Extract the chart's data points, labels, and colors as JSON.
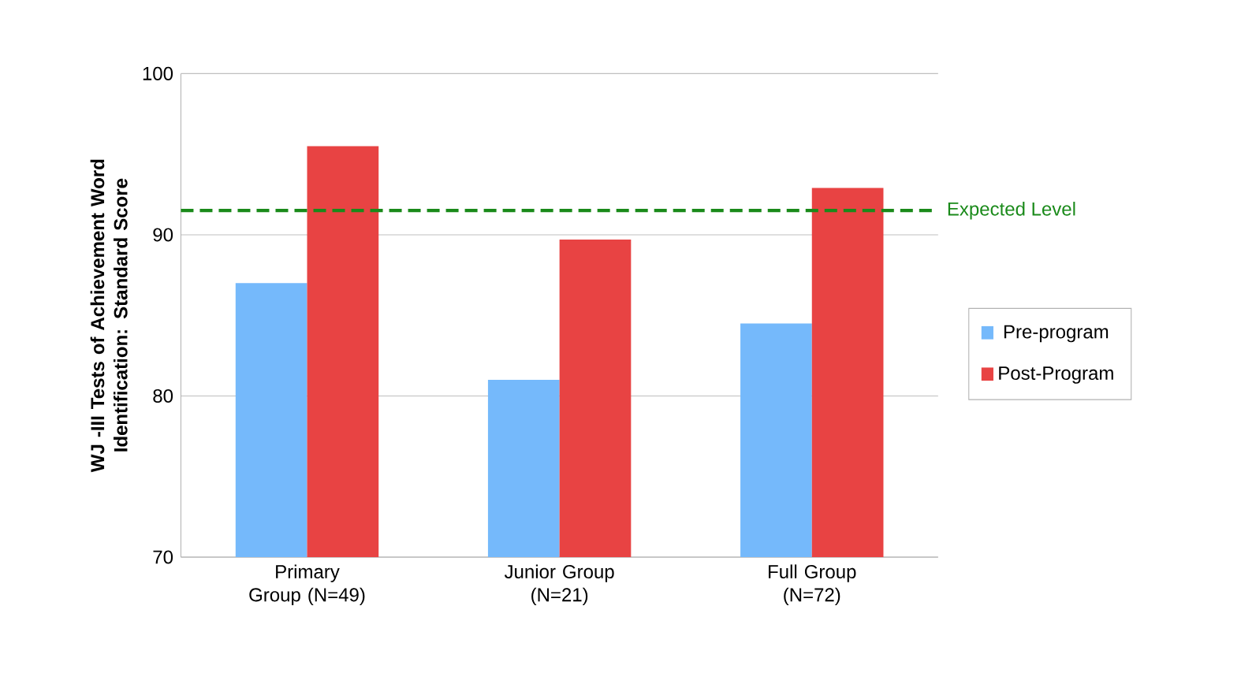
{
  "chart_data": {
    "type": "bar",
    "ylabel": "WJ -III Tests of Achievement Word Identification: Standard Score",
    "categories": [
      "Primary Group (N=49)",
      "Junior Group (N=21)",
      "Full Group (N=72)"
    ],
    "series": [
      {
        "name": "Pre-program",
        "color": "#75b9fb",
        "values": [
          87,
          81,
          84.5
        ]
      },
      {
        "name": "Post-Program",
        "color": "#e84343",
        "values": [
          95.5,
          89.7,
          92.9
        ]
      }
    ],
    "ylim": [
      70,
      100
    ],
    "yticks": [
      70,
      80,
      90,
      100
    ],
    "grid": "y",
    "legend": "right",
    "ref_lines": [
      {
        "axis": "y",
        "value": 91.5,
        "label": "Expected Level",
        "color": "#1a8a1a",
        "line_style": "dashed"
      }
    ]
  }
}
